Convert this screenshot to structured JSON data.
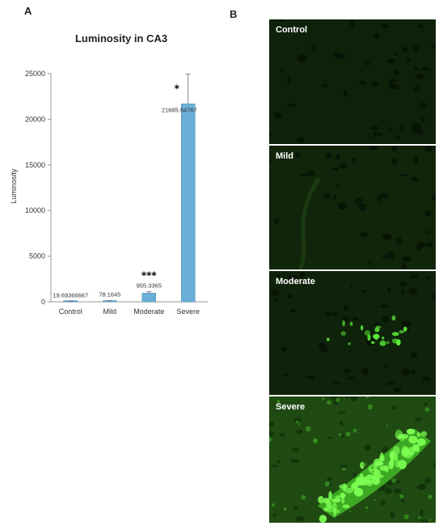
{
  "panel_a_label": "A",
  "panel_b_label": "B",
  "chart_data": {
    "type": "bar",
    "title": "Luminosity in CA3",
    "ylabel": "Luminosity",
    "xlabel": "",
    "categories": [
      "Control",
      "Mild",
      "Moderate",
      "Severe"
    ],
    "values": [
      19.69366667,
      78.1645,
      955.3365,
      21685.94767
    ],
    "value_labels": [
      "19.69366667",
      "78.1645",
      "955.3365",
      "21685.94767"
    ],
    "error": [
      40,
      60,
      150,
      3250
    ],
    "significance": [
      "",
      "",
      "***",
      "*"
    ],
    "ylim": [
      0,
      25000
    ],
    "yticks": [
      0,
      5000,
      10000,
      15000,
      20000,
      25000
    ],
    "bar_color": "#6baed6",
    "grid": false
  },
  "micrographs": [
    {
      "label": "Control",
      "intensity": "none"
    },
    {
      "label": "Mild",
      "intensity": "low"
    },
    {
      "label": "Moderate",
      "intensity": "medium"
    },
    {
      "label": "Severe",
      "intensity": "high"
    }
  ]
}
